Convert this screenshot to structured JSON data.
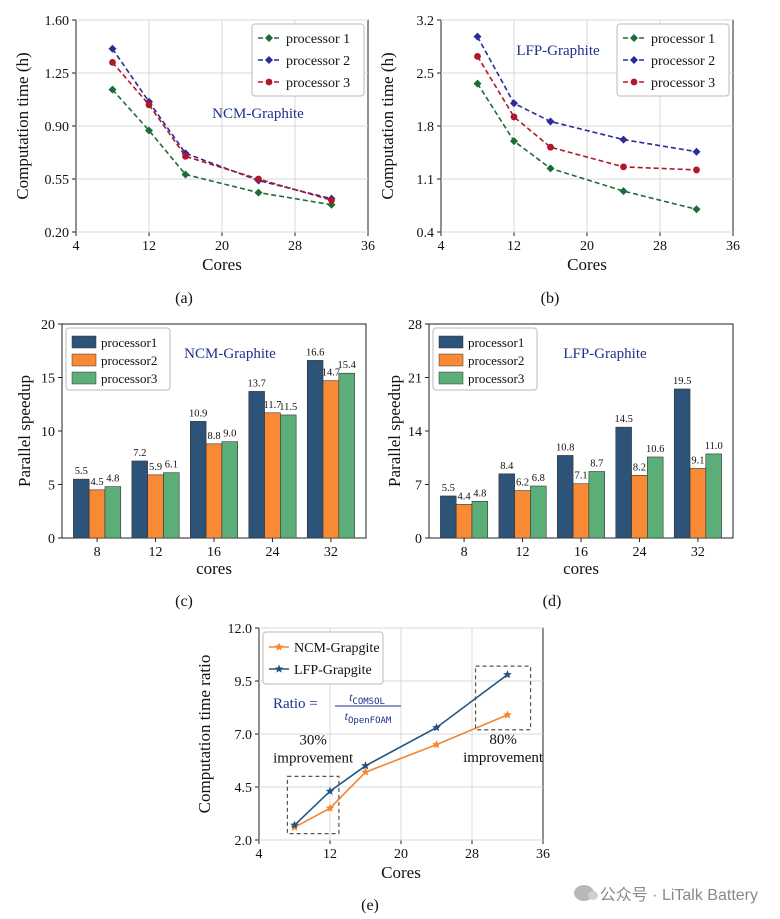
{
  "chart_data": [
    {
      "id": "a",
      "type": "line",
      "panel_label": "(a)",
      "annotation": "NCM-Graphite",
      "xlabel": "Cores",
      "ylabel": "Computation time (h)",
      "xlim": [
        4,
        36
      ],
      "ylim": [
        0.2,
        1.6
      ],
      "xticks": [
        4,
        12,
        20,
        28,
        36
      ],
      "yticks": [
        "0.20",
        "0.55",
        "0.90",
        "1.25",
        "1.60"
      ],
      "legend_position": "top-right",
      "series": [
        {
          "name": "processor 1",
          "color": "#1e6b3a",
          "marker": "diamond",
          "x": [
            8,
            12,
            16,
            24,
            32
          ],
          "y": [
            1.14,
            0.87,
            0.58,
            0.46,
            0.38
          ]
        },
        {
          "name": "processor 2",
          "color": "#2b2b9a",
          "marker": "diamond",
          "x": [
            8,
            12,
            16,
            24,
            32
          ],
          "y": [
            1.41,
            1.06,
            0.72,
            0.54,
            0.42
          ]
        },
        {
          "name": "processor 3",
          "color": "#b0182a",
          "marker": "circle",
          "x": [
            8,
            12,
            16,
            24,
            32
          ],
          "y": [
            1.32,
            1.04,
            0.7,
            0.55,
            0.41
          ]
        }
      ]
    },
    {
      "id": "b",
      "type": "line",
      "panel_label": "(b)",
      "annotation": "LFP-Graphite",
      "xlabel": "Cores",
      "ylabel": "Computation time (h)",
      "xlim": [
        4,
        36
      ],
      "ylim": [
        0.4,
        3.2
      ],
      "xticks": [
        4,
        12,
        20,
        28,
        36
      ],
      "yticks": [
        "0.4",
        "1.1",
        "1.8",
        "2.5",
        "3.2"
      ],
      "legend_position": "top-right",
      "series": [
        {
          "name": "processor 1",
          "color": "#1e6b3a",
          "marker": "diamond",
          "x": [
            8,
            12,
            16,
            24,
            32
          ],
          "y": [
            2.36,
            1.6,
            1.24,
            0.94,
            0.7
          ]
        },
        {
          "name": "processor 2",
          "color": "#2b2b9a",
          "marker": "diamond",
          "x": [
            8,
            12,
            16,
            24,
            32
          ],
          "y": [
            2.98,
            2.1,
            1.86,
            1.62,
            1.46
          ]
        },
        {
          "name": "processor 3",
          "color": "#b0182a",
          "marker": "circle",
          "x": [
            8,
            12,
            16,
            24,
            32
          ],
          "y": [
            2.72,
            1.92,
            1.52,
            1.26,
            1.22
          ]
        }
      ]
    },
    {
      "id": "c",
      "type": "bar",
      "panel_label": "(c)",
      "annotation": "NCM-Graphite",
      "xlabel": "cores",
      "ylabel": "Parallel speedup",
      "ylim": [
        0,
        20
      ],
      "yticks": [
        "0",
        "5",
        "10",
        "15",
        "20"
      ],
      "categories": [
        "8",
        "12",
        "16",
        "24",
        "32"
      ],
      "legend_position": "top-left",
      "series": [
        {
          "name": "processor1",
          "color": "#2d5478",
          "values": [
            5.5,
            7.2,
            10.9,
            13.7,
            16.6
          ],
          "labels": [
            "5.5",
            "7.2",
            "10.9",
            "13.7",
            "16.6"
          ]
        },
        {
          "name": "processor2",
          "color": "#f98a35",
          "values": [
            4.5,
            5.9,
            8.8,
            11.7,
            14.7
          ],
          "labels": [
            "4.5",
            "5.9",
            "8.8",
            "11.7",
            "14.7"
          ]
        },
        {
          "name": "processor3",
          "color": "#5cae78",
          "values": [
            4.8,
            6.1,
            9.0,
            11.5,
            15.4
          ],
          "labels": [
            "4.8",
            "6.1",
            "9.0",
            "11.5",
            "15.4"
          ]
        }
      ]
    },
    {
      "id": "d",
      "type": "bar",
      "panel_label": "(d)",
      "annotation": "LFP-Graphite",
      "xlabel": "cores",
      "ylabel": "Parallel speedup",
      "ylim": [
        0,
        28
      ],
      "yticks": [
        "0",
        "7",
        "14",
        "21",
        "28"
      ],
      "categories": [
        "8",
        "12",
        "16",
        "24",
        "32"
      ],
      "legend_position": "top-left",
      "series": [
        {
          "name": "processor1",
          "color": "#2d5478",
          "values": [
            5.5,
            8.4,
            10.8,
            14.5,
            19.5
          ],
          "labels": [
            "5.5",
            "8.4",
            "10.8",
            "14.5",
            "19.5"
          ]
        },
        {
          "name": "processor2",
          "color": "#f98a35",
          "values": [
            4.4,
            6.2,
            7.1,
            8.2,
            9.1
          ],
          "labels": [
            "4.4",
            "6.2",
            "7.1",
            "8.2",
            "9.1"
          ]
        },
        {
          "name": "processor3",
          "color": "#5cae78",
          "values": [
            4.8,
            6.8,
            8.7,
            10.6,
            11.0
          ],
          "labels": [
            "4.8",
            "6.8",
            "8.7",
            "10.6",
            "11.0"
          ]
        }
      ]
    },
    {
      "id": "e",
      "type": "line",
      "panel_label": "(e)",
      "xlabel": "Cores",
      "ylabel": "Computation time ratio",
      "xlim": [
        4,
        36
      ],
      "ylim": [
        2.0,
        12.0
      ],
      "xticks": [
        4,
        12,
        20,
        28,
        36
      ],
      "yticks": [
        "2.0",
        "4.5",
        "7.0",
        "9.5",
        "12.0"
      ],
      "legend_position": "top-left",
      "ratio_label": "Ratio =",
      "ratio_numerator": "t",
      "ratio_numerator_sub": "COMSOL",
      "ratio_denominator": "t",
      "ratio_denominator_sub": "OpenFOAM",
      "annotations": [
        {
          "line1": "30%",
          "line2": "improvement",
          "box_x": [
            7.2,
            13.0
          ],
          "box_y": [
            2.3,
            5.0
          ]
        },
        {
          "line1": "80%",
          "line2": "improvement",
          "box_x": [
            28.4,
            34.6
          ],
          "box_y": [
            7.2,
            10.2
          ]
        }
      ],
      "series": [
        {
          "name": "NCM-Grapgite",
          "color": "#f5852e",
          "marker": "star",
          "x": [
            8,
            12,
            16,
            24,
            32
          ],
          "y": [
            2.6,
            3.5,
            5.2,
            6.5,
            7.9
          ]
        },
        {
          "name": "LFP-Grapgite",
          "color": "#24557f",
          "marker": "star",
          "x": [
            8,
            12,
            16,
            24,
            32
          ],
          "y": [
            2.7,
            4.3,
            5.5,
            7.3,
            9.8
          ]
        }
      ]
    }
  ],
  "watermark": {
    "text": "公众号 · LiTalk Battery"
  }
}
